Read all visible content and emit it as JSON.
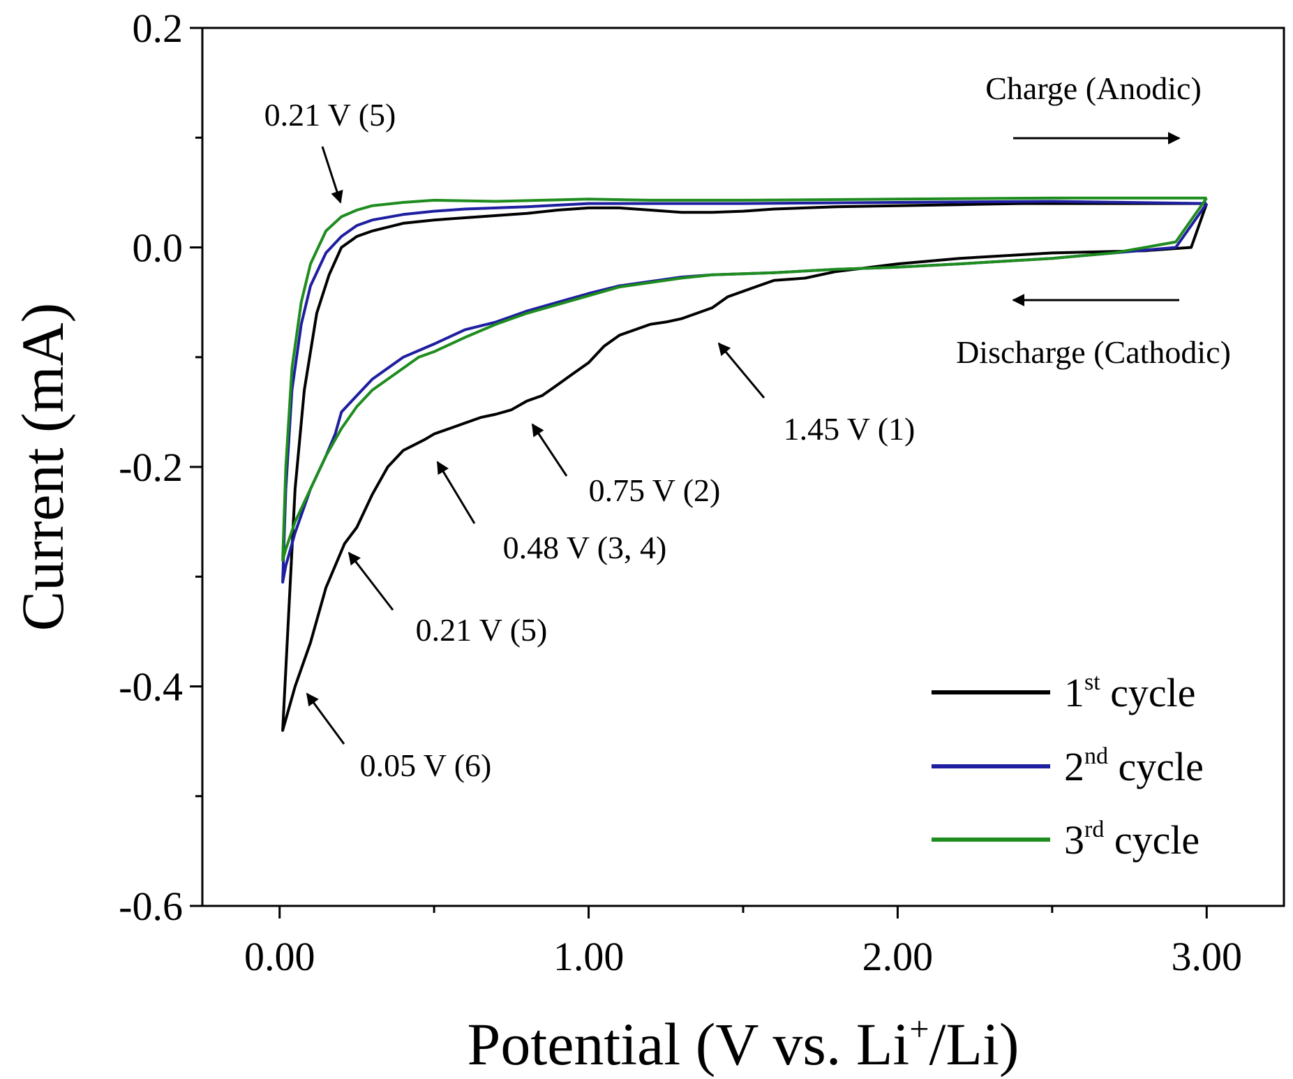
{
  "chart_data": {
    "type": "line",
    "xlabel": "Potential (V vs. Li",
    "xlabel_sup": "+",
    "xlabel_tail": "/Li)",
    "ylabel": "Current (mA)",
    "xlim": [
      -0.25,
      3.25
    ],
    "ylim": [
      -0.6,
      0.2
    ],
    "x_ticks": [
      0,
      1,
      2,
      3
    ],
    "x_tick_labels": [
      "0.00",
      "1.00",
      "2.00",
      "3.00"
    ],
    "x_minor_ticks": [
      0.5,
      1.5,
      2.5
    ],
    "y_ticks": [
      0.2,
      0.0,
      -0.2,
      -0.4,
      -0.6
    ],
    "y_tick_labels": [
      "0.2",
      "0.0",
      "-0.2",
      "-0.4",
      "-0.6"
    ],
    "y_minor_ticks": [
      0.1,
      -0.1,
      -0.3,
      -0.5
    ],
    "grid": false,
    "legend_position": "bottom-right",
    "series": [
      {
        "name": "1",
        "name_sup": "st",
        "name_tail": " cycle",
        "color": "#000000",
        "x": [
          3.0,
          2.95,
          2.8,
          2.5,
          2.2,
          2.0,
          1.8,
          1.7,
          1.6,
          1.55,
          1.45,
          1.4,
          1.3,
          1.25,
          1.2,
          1.1,
          1.05,
          1.0,
          0.95,
          0.9,
          0.85,
          0.8,
          0.75,
          0.7,
          0.65,
          0.6,
          0.55,
          0.5,
          0.47,
          0.4,
          0.35,
          0.3,
          0.25,
          0.21,
          0.15,
          0.1,
          0.05,
          0.02,
          0.01,
          0.03,
          0.05,
          0.08,
          0.12,
          0.16,
          0.2,
          0.25,
          0.3,
          0.4,
          0.5,
          0.6,
          0.7,
          0.8,
          0.9,
          1.0,
          1.1,
          1.2,
          1.3,
          1.4,
          1.5,
          1.6,
          1.8,
          2.0,
          2.2,
          2.4,
          2.6,
          2.8,
          2.95,
          3.0
        ],
        "y": [
          0.04,
          0.0,
          -0.003,
          -0.005,
          -0.01,
          -0.015,
          -0.022,
          -0.028,
          -0.03,
          -0.035,
          -0.045,
          -0.055,
          -0.065,
          -0.068,
          -0.07,
          -0.08,
          -0.09,
          -0.105,
          -0.115,
          -0.125,
          -0.135,
          -0.14,
          -0.148,
          -0.152,
          -0.155,
          -0.16,
          -0.165,
          -0.17,
          -0.175,
          -0.185,
          -0.2,
          -0.225,
          -0.255,
          -0.27,
          -0.31,
          -0.36,
          -0.4,
          -0.43,
          -0.44,
          -0.33,
          -0.22,
          -0.13,
          -0.06,
          -0.025,
          0.0,
          0.01,
          0.015,
          0.022,
          0.025,
          0.027,
          0.029,
          0.031,
          0.034,
          0.036,
          0.036,
          0.034,
          0.032,
          0.032,
          0.033,
          0.035,
          0.037,
          0.038,
          0.039,
          0.04,
          0.04,
          0.04,
          0.04,
          0.04
        ]
      },
      {
        "name": "2",
        "name_sup": "nd",
        "name_tail": " cycle",
        "color": "#1e1ea0",
        "x": [
          3.0,
          2.9,
          2.7,
          2.5,
          2.2,
          2.0,
          1.8,
          1.6,
          1.4,
          1.3,
          1.1,
          1.0,
          0.9,
          0.8,
          0.7,
          0.6,
          0.5,
          0.4,
          0.3,
          0.25,
          0.2,
          0.18,
          0.15,
          0.1,
          0.05,
          0.02,
          0.01,
          0.02,
          0.04,
          0.07,
          0.1,
          0.15,
          0.2,
          0.25,
          0.3,
          0.4,
          0.5,
          0.6,
          0.8,
          1.0,
          1.2,
          1.5,
          2.0,
          2.5,
          3.0
        ],
        "y": [
          0.04,
          0.0,
          -0.005,
          -0.01,
          -0.015,
          -0.018,
          -0.02,
          -0.023,
          -0.025,
          -0.027,
          -0.035,
          -0.042,
          -0.05,
          -0.058,
          -0.068,
          -0.075,
          -0.088,
          -0.1,
          -0.12,
          -0.135,
          -0.15,
          -0.17,
          -0.19,
          -0.22,
          -0.26,
          -0.29,
          -0.305,
          -0.22,
          -0.13,
          -0.07,
          -0.035,
          -0.005,
          0.01,
          0.02,
          0.025,
          0.03,
          0.033,
          0.035,
          0.037,
          0.04,
          0.04,
          0.04,
          0.041,
          0.042,
          0.04
        ]
      },
      {
        "name": "3",
        "name_sup": "rd",
        "name_tail": " cycle",
        "color": "#1e8c1e",
        "x": [
          3.0,
          2.9,
          2.7,
          2.5,
          2.2,
          2.0,
          1.8,
          1.6,
          1.4,
          1.3,
          1.1,
          1.0,
          0.9,
          0.8,
          0.7,
          0.6,
          0.5,
          0.45,
          0.4,
          0.3,
          0.25,
          0.2,
          0.15,
          0.1,
          0.05,
          0.02,
          0.01,
          0.02,
          0.04,
          0.07,
          0.1,
          0.15,
          0.2,
          0.25,
          0.3,
          0.4,
          0.5,
          0.7,
          1.0,
          1.2,
          1.5,
          2.0,
          2.5,
          3.0
        ],
        "y": [
          0.045,
          0.005,
          -0.005,
          -0.01,
          -0.015,
          -0.018,
          -0.02,
          -0.023,
          -0.025,
          -0.028,
          -0.036,
          -0.044,
          -0.052,
          -0.06,
          -0.07,
          -0.082,
          -0.095,
          -0.1,
          -0.11,
          -0.13,
          -0.145,
          -0.165,
          -0.19,
          -0.22,
          -0.25,
          -0.275,
          -0.285,
          -0.2,
          -0.11,
          -0.05,
          -0.015,
          0.015,
          0.028,
          0.034,
          0.038,
          0.041,
          0.043,
          0.042,
          0.044,
          0.043,
          0.043,
          0.044,
          0.045,
          0.045
        ]
      }
    ],
    "annotations": [
      {
        "text": "Charge (Anodic)"
      },
      {
        "text": "Discharge (Cathodic)"
      },
      {
        "text": "0.21 V (5)"
      },
      {
        "text": "1.45 V (1)"
      },
      {
        "text": "0.75 V (2)"
      },
      {
        "text": "0.48 V (3, 4)"
      },
      {
        "text": "0.21 V (5)"
      },
      {
        "text": "0.05 V (6)"
      }
    ]
  }
}
